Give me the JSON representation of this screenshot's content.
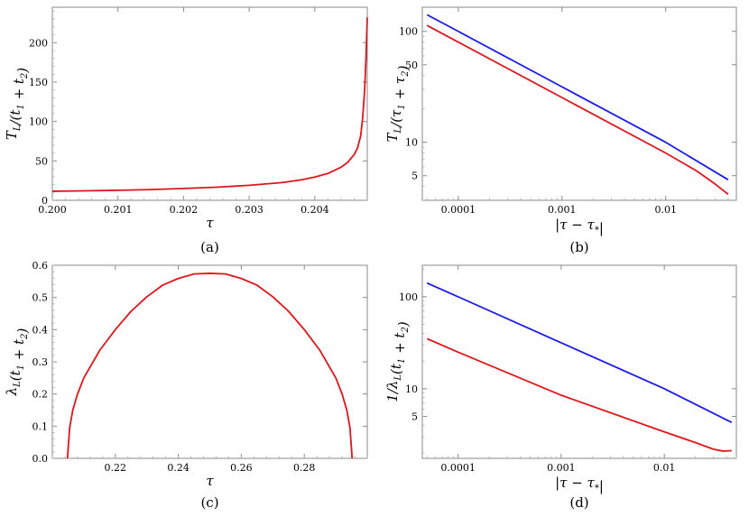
{
  "chart_data": [
    {
      "panel": "(a)",
      "type": "line",
      "xlabel": "τ",
      "ylabel": "T_L/(t_1 + t_2)",
      "xlim": [
        0.2,
        0.2048
      ],
      "ylim": [
        0,
        245
      ],
      "xscale": "linear",
      "yscale": "linear",
      "xticks": [
        0.2,
        0.201,
        0.202,
        0.203,
        0.204
      ],
      "xtick_labels": [
        "0.200",
        "0.201",
        "0.202",
        "0.203",
        "0.204"
      ],
      "yticks": [
        0,
        50,
        100,
        150,
        200
      ],
      "ytick_labels": [
        "0",
        "50",
        "100",
        "150",
        "200"
      ],
      "grid": false,
      "series": [
        {
          "color": "#e0151b",
          "x": [
            0.2,
            0.2005,
            0.201,
            0.2015,
            0.202,
            0.2025,
            0.203,
            0.2035,
            0.2038,
            0.204,
            0.2042,
            0.2044,
            0.2045,
            0.2046,
            0.20465,
            0.2047,
            0.20473,
            0.20476,
            0.20478,
            0.2048
          ],
          "y": [
            11.5,
            12.0,
            12.7,
            13.6,
            15.0,
            16.6,
            19.0,
            22.5,
            26.0,
            29.5,
            34.0,
            42.0,
            48.0,
            58.0,
            66.0,
            82.0,
            105.0,
            140.0,
            180.0,
            232.0
          ]
        }
      ]
    },
    {
      "panel": "(b)",
      "type": "line",
      "xlabel": "|τ − τ_*|",
      "ylabel": "T_L/(τ_1 + τ_2)",
      "xlim": [
        4.5e-05,
        0.048
      ],
      "ylim": [
        3.0,
        165
      ],
      "xscale": "log",
      "yscale": "log",
      "xticks": [
        0.0001,
        0.001,
        0.01
      ],
      "xtick_labels": [
        "0.0001",
        "0.001",
        "0.01"
      ],
      "yticks": [
        5,
        10,
        50,
        100
      ],
      "ytick_labels": [
        "5",
        "10",
        "50",
        "100"
      ],
      "grid": false,
      "series": [
        {
          "color": "#1a1aee",
          "x": [
            5e-05,
            0.0001,
            0.001,
            0.01,
            0.04
          ],
          "y": [
            141.0,
            100.0,
            31.6,
            10.0,
            4.6
          ]
        },
        {
          "color": "#e0151b",
          "x": [
            5e-05,
            0.0001,
            0.001,
            0.01,
            0.02,
            0.03,
            0.04
          ],
          "y": [
            113.0,
            80.0,
            25.3,
            8.0,
            5.5,
            4.2,
            3.4
          ]
        }
      ]
    },
    {
      "panel": "(c)",
      "type": "line",
      "xlabel": "τ",
      "ylabel": "λ_L(t_1 + t_2)",
      "xlim": [
        0.2,
        0.3
      ],
      "ylim": [
        0,
        0.6
      ],
      "xscale": "linear",
      "yscale": "linear",
      "xticks": [
        0.22,
        0.24,
        0.26,
        0.28
      ],
      "xtick_labels": [
        "0.22",
        "0.24",
        "0.26",
        "0.28"
      ],
      "yticks": [
        0,
        0.1,
        0.2,
        0.3,
        0.4,
        0.5,
        0.6
      ],
      "ytick_labels": [
        "0.0",
        "0.1",
        "0.2",
        "0.3",
        "0.4",
        "0.5",
        "0.6"
      ],
      "grid": false,
      "series": [
        {
          "color": "#e0151b",
          "x": [
            0.2048,
            0.2055,
            0.2065,
            0.208,
            0.21,
            0.215,
            0.22,
            0.225,
            0.23,
            0.235,
            0.24,
            0.245,
            0.25,
            0.255,
            0.26,
            0.265,
            0.27,
            0.275,
            0.28,
            0.285,
            0.29,
            0.292,
            0.2935,
            0.2945,
            0.2952
          ],
          "y": [
            0.0,
            0.095,
            0.15,
            0.2,
            0.25,
            0.335,
            0.4,
            0.457,
            0.502,
            0.538,
            0.559,
            0.573,
            0.575,
            0.573,
            0.559,
            0.538,
            0.502,
            0.457,
            0.4,
            0.335,
            0.25,
            0.2,
            0.15,
            0.095,
            0.0
          ]
        }
      ]
    },
    {
      "panel": "(d)",
      "type": "line",
      "xlabel": "|τ − τ_*|",
      "ylabel": "1/λ_L(t_1 + t_2)",
      "xlim": [
        4.5e-05,
        0.05
      ],
      "ylim": [
        1.75,
        220
      ],
      "xscale": "log",
      "yscale": "log",
      "xticks": [
        0.0001,
        0.001,
        0.01
      ],
      "xtick_labels": [
        "0.0001",
        "0.001",
        "0.01"
      ],
      "yticks": [
        5,
        10,
        100
      ],
      "ytick_labels": [
        "5",
        "10",
        "100"
      ],
      "grid": false,
      "series": [
        {
          "color": "#1a1aee",
          "x": [
            5e-05,
            0.0001,
            0.001,
            0.01,
            0.045
          ],
          "y": [
            141.0,
            100.0,
            31.6,
            10.0,
            4.3
          ]
        },
        {
          "color": "#e0151b",
          "x": [
            5e-05,
            0.0001,
            0.001,
            0.01,
            0.02,
            0.03,
            0.037,
            0.045
          ],
          "y": [
            35.0,
            25.0,
            8.5,
            3.4,
            2.6,
            2.2,
            2.1,
            2.12
          ]
        }
      ]
    }
  ]
}
